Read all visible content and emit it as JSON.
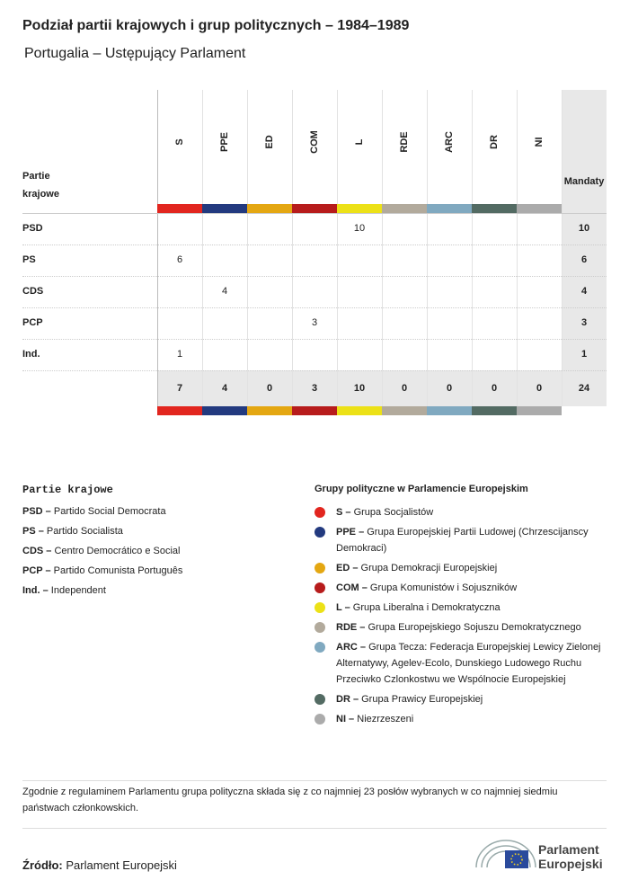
{
  "header": {
    "title": "Podział partii krajowych i grup politycznych – 1984–1989",
    "subtitle": "Portugalia – Ustępujący Parlament"
  },
  "table": {
    "row_header": "Partie krajowe",
    "total_header": "Mandaty",
    "columns": [
      {
        "label": "S",
        "color": "#e2261f"
      },
      {
        "label": "PPE",
        "color": "#233a7f"
      },
      {
        "label": "ED",
        "color": "#e4a712"
      },
      {
        "label": "COM",
        "color": "#b71c1c"
      },
      {
        "label": "L",
        "color": "#ece117"
      },
      {
        "label": "RDE",
        "color": "#b2aa9c"
      },
      {
        "label": "ARC",
        "color": "#80a9c0"
      },
      {
        "label": "DR",
        "color": "#536b63"
      },
      {
        "label": "NI",
        "color": "#ababab"
      }
    ],
    "rows": [
      {
        "party": "PSD",
        "cells": [
          null,
          null,
          null,
          null,
          10,
          null,
          null,
          null,
          null
        ],
        "total": 10
      },
      {
        "party": "PS",
        "cells": [
          6,
          null,
          null,
          null,
          null,
          null,
          null,
          null,
          null
        ],
        "total": 6
      },
      {
        "party": "CDS",
        "cells": [
          null,
          4,
          null,
          null,
          null,
          null,
          null,
          null,
          null
        ],
        "total": 4
      },
      {
        "party": "PCP",
        "cells": [
          null,
          null,
          null,
          3,
          null,
          null,
          null,
          null,
          null
        ],
        "total": 3
      },
      {
        "party": "Ind.",
        "cells": [
          1,
          null,
          null,
          null,
          null,
          null,
          null,
          null,
          null
        ],
        "total": 1
      }
    ],
    "totals": [
      7,
      4,
      0,
      3,
      10,
      0,
      0,
      0,
      0
    ],
    "grand_total": 24
  },
  "national_legend": {
    "title": "Partie krajowe",
    "items": [
      {
        "abbr": "PSD –",
        "name": "Partido Social Democrata"
      },
      {
        "abbr": "PS –",
        "name": "Partido Socialista"
      },
      {
        "abbr": "CDS –",
        "name": "Centro Democrático e Social"
      },
      {
        "abbr": "PCP –",
        "name": "Partido Comunista Português"
      },
      {
        "abbr": "Ind. –",
        "name": "Independent"
      }
    ]
  },
  "group_legend": {
    "title": "Grupy polityczne w Parlamencie Europejskim",
    "items": [
      {
        "abbr": "S –",
        "name": "Grupa Socjalistów"
      },
      {
        "abbr": "PPE –",
        "name": "Grupa Europejskiej Partii Ludowej (Chrzescijanscy Demokraci)"
      },
      {
        "abbr": "ED –",
        "name": "Grupa Demokracji Europejskiej"
      },
      {
        "abbr": "COM –",
        "name": "Grupa Komunistów i Sojuszników"
      },
      {
        "abbr": "L –",
        "name": "Grupa Liberalna i Demokratyczna"
      },
      {
        "abbr": "RDE –",
        "name": "Grupa Europejskiego Sojuszu Demokratycznego"
      },
      {
        "abbr": "ARC –",
        "name": "Grupa Tecza: Federacja Europejskiej Lewicy Zielonej Alternatywy, Agelev-Ecolo, Dunskiego Ludowego Ruchu Przeciwko Czlonkostwu we Wspólnocie Europejskiej"
      },
      {
        "abbr": "DR –",
        "name": "Grupa Prawicy Europejskiej"
      },
      {
        "abbr": "NI –",
        "name": "Niezrzeszeni"
      }
    ]
  },
  "footnote": "Zgodnie z regulaminem Parlamentu grupa polityczna składa się z co najmniej 23 posłów wybranych w co najmniej siedmiu państwach członkowskich.",
  "source": {
    "label": "Źródło:",
    "value": "Parlament Europejski"
  },
  "logo": {
    "line1": "Parlament",
    "line2": "Europejski"
  }
}
